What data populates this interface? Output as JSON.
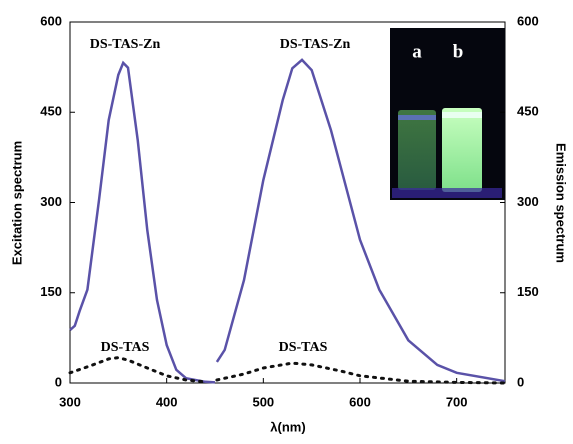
{
  "chart_data": {
    "type": "line",
    "xlabel": "λ(nm)",
    "ylabel": "Excitation spectrum",
    "y2label": "Emission spectrum",
    "xlim": [
      300,
      750
    ],
    "xticks": [
      300,
      400,
      500,
      600,
      700
    ],
    "ylim": [
      0,
      600
    ],
    "yticks": [
      0,
      150,
      300,
      450,
      600
    ],
    "y2lim": [
      0,
      600
    ],
    "y2ticks": [
      0,
      150,
      300,
      450,
      600
    ],
    "series": [
      {
        "name": "DS-TAS-Zn",
        "color": "#5a52a8",
        "style": "solid",
        "x": [
          300,
          305,
          310,
          318,
          330,
          340,
          350,
          355,
          360,
          370,
          380,
          390,
          400,
          410,
          420,
          440,
          450
        ],
        "values": [
          88,
          95,
          120,
          155,
          304,
          437,
          512,
          532,
          524,
          404,
          254,
          138,
          63,
          22,
          8,
          2,
          1
        ]
      },
      {
        "name": "DS-TAS-Zn",
        "color": "#5a52a8",
        "style": "solid",
        "axis": "y2",
        "x": [
          452,
          460,
          480,
          500,
          520,
          530,
          540,
          550,
          570,
          600,
          620,
          650,
          680,
          700,
          750
        ],
        "values": [
          35,
          55,
          171,
          337,
          470,
          523,
          537,
          520,
          420,
          238,
          155,
          71,
          30,
          17,
          3
        ]
      },
      {
        "name": "DS-TAS",
        "color": "#111111",
        "style": "dotted",
        "x": [
          300,
          320,
          340,
          350,
          360,
          380,
          400,
          420,
          440
        ],
        "values": [
          17,
          28,
          40,
          42,
          38,
          25,
          12,
          5,
          2
        ]
      },
      {
        "name": "DS-TAS",
        "color": "#111111",
        "style": "dotted",
        "axis": "y2",
        "x": [
          452,
          480,
          500,
          530,
          550,
          580,
          600,
          650,
          700,
          750
        ],
        "values": [
          5,
          15,
          25,
          33,
          30,
          20,
          12,
          3,
          1,
          0
        ]
      }
    ]
  },
  "inset": {
    "labels": [
      "a",
      "b"
    ]
  }
}
